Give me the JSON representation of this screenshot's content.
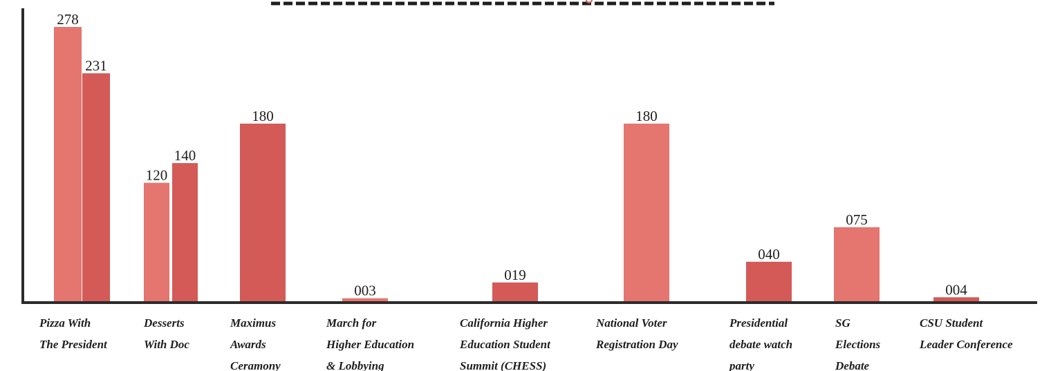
{
  "chart_data": {
    "type": "bar",
    "categories": [
      [
        "Pizza With",
        "The President"
      ],
      [
        "Desserts",
        "With Doc"
      ],
      [
        "Maximus",
        "Awards",
        "Ceramony"
      ],
      [
        "March for",
        "Higher Education",
        "& Lobbying"
      ],
      [
        "California Higher",
        "Education Student",
        "Summit (CHESS)"
      ],
      [
        "National Voter",
        "Registration Day"
      ],
      [
        "Presidential",
        "debate watch",
        "party"
      ],
      [
        "SG",
        "Elections",
        "Debate"
      ],
      [
        "CSU Student",
        "Leader Conference"
      ]
    ],
    "series": [
      {
        "color": "#e4756f",
        "values": [
          278,
          120,
          null,
          3,
          null,
          180,
          null,
          75,
          null
        ]
      },
      {
        "color": "#d35a56",
        "values": [
          231,
          140,
          180,
          null,
          19,
          null,
          40,
          null,
          4
        ]
      }
    ],
    "value_labels": [
      [
        "278",
        "120",
        null,
        "003",
        null,
        "180",
        null,
        "075",
        null
      ],
      [
        "231",
        "140",
        "180",
        null,
        "019",
        null,
        "040",
        null,
        "004"
      ]
    ],
    "ylim": [
      0,
      290
    ],
    "grid": false,
    "legend": "none",
    "axis_color": "#2b2b2b",
    "header_dash_color": "#1e1e1e",
    "header_accent_color": "#d35a56"
  }
}
